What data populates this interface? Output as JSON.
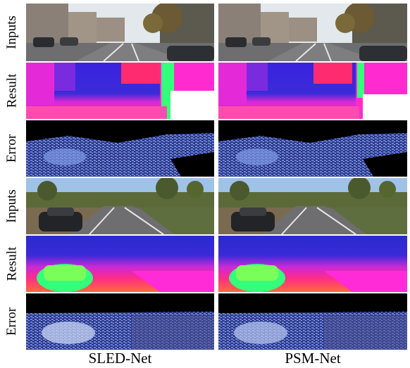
{
  "row_labels": [
    "Inputs",
    "Result",
    "Error",
    "Inputs",
    "Result",
    "Error"
  ],
  "column_labels": [
    "SLED-Net",
    "PSM-Net"
  ],
  "colors": {
    "sky": "#dfe6ea",
    "road": "#6e6e70",
    "building": "#8a8078",
    "foliage": "#5c6a3a",
    "magenta": "#ff2bd6",
    "blue": "#2a2ad8",
    "green": "#35ff7a",
    "error_bg": "#000000",
    "error_blue": "#3b4fbf"
  }
}
